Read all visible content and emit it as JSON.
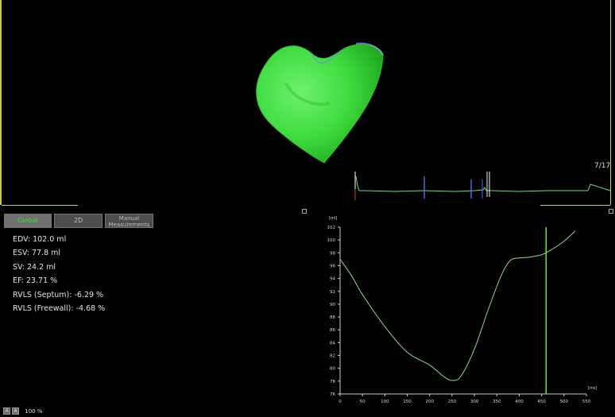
{
  "viewport": {
    "frame_counter": "7/17",
    "colors": {
      "heart": "#3fdc3f",
      "accent_line": "#c8c850",
      "ecg_line": "#6fe06f"
    }
  },
  "tabs": [
    {
      "label": "Global",
      "active": true
    },
    {
      "label": "2D",
      "active": false
    },
    {
      "label": "Manual Measurements",
      "active": false
    }
  ],
  "measurements": {
    "edv": "EDV: 102.0 ml",
    "esv": "ESV: 77.8 ml",
    "sv": "SV: 24.2 ml",
    "ef": "EF: 23.71 %",
    "rvls_septum": "RVLS (Septum): -6.29 %",
    "rvls_freewall": "RVLS (Freewall): -4.68 %"
  },
  "status_bar": {
    "buttons": [
      "A",
      "A"
    ],
    "zoom": "100 %"
  },
  "chart_data": {
    "type": "line",
    "x_unit_label": "[ms]",
    "y_unit_label": "[ml]",
    "xlim": [
      0,
      550
    ],
    "ylim": [
      76,
      102
    ],
    "x_ticks": [
      0,
      50,
      100,
      150,
      200,
      250,
      300,
      350,
      400,
      450,
      500,
      550
    ],
    "y_ticks": [
      76,
      78,
      80,
      82,
      84,
      86,
      88,
      90,
      92,
      94,
      96,
      98,
      100,
      102
    ],
    "series": [
      {
        "x": [
          0,
          25,
          50,
          100,
          150,
          200,
          230,
          250,
          270,
          300,
          330,
          360,
          380,
          400,
          420,
          450,
          470,
          500,
          525
        ],
        "y": [
          97,
          94.5,
          91.5,
          86.5,
          82.5,
          80.5,
          78.8,
          78.1,
          78.8,
          83,
          89,
          94.5,
          96.8,
          97.2,
          97.3,
          97.7,
          98.4,
          99.8,
          101.4
        ]
      }
    ],
    "cursor_x": 460,
    "color": "#8ed88e",
    "cursor_color": "#7ee03e"
  }
}
